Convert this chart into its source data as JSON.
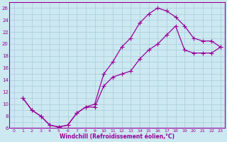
{
  "xlabel": "Windchill (Refroidissement éolien,°C)",
  "bg_color": "#cce8f0",
  "grid_color": "#aaccdd",
  "line_color": "#990099",
  "xlim": [
    -0.5,
    23.5
  ],
  "ylim": [
    6,
    27
  ],
  "xticks": [
    0,
    1,
    2,
    3,
    4,
    5,
    6,
    7,
    8,
    9,
    10,
    11,
    12,
    13,
    14,
    15,
    16,
    17,
    18,
    19,
    20,
    21,
    22,
    23
  ],
  "yticks": [
    6,
    8,
    10,
    12,
    14,
    16,
    18,
    20,
    22,
    24,
    26
  ],
  "curve1_x": [
    1,
    2,
    3,
    4,
    5,
    6,
    7,
    8,
    9,
    10,
    11,
    12,
    13,
    14,
    15,
    16,
    17,
    18,
    19,
    20,
    21,
    22,
    23
  ],
  "curve1_y": [
    11,
    9,
    8,
    6.5,
    6.2,
    6.5,
    8.5,
    9.5,
    10,
    15,
    17,
    19.5,
    21,
    23.5,
    25,
    26,
    25.5,
    24.5,
    23,
    21,
    20.5,
    20.5,
    19.5
  ],
  "curve2_x": [
    1,
    2,
    3,
    4,
    5,
    6,
    7,
    8,
    9,
    10,
    11,
    12,
    13,
    14,
    15,
    16,
    17,
    18,
    19,
    20,
    21,
    22,
    23
  ],
  "curve2_y": [
    11,
    9,
    8,
    6.5,
    6.2,
    6.5,
    8.5,
    9.5,
    9.5,
    13,
    14.5,
    15,
    15.5,
    17.5,
    19,
    20,
    21.5,
    23,
    19,
    18.5,
    18.5,
    18.5,
    19.5
  ]
}
